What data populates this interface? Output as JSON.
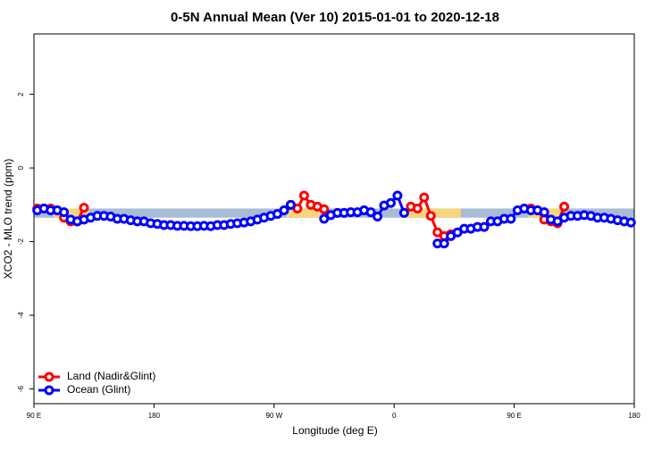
{
  "chart_data": {
    "type": "line",
    "title": "0-5N Annual Mean (Ver 10)   2015-01-01 to 2020-12-18",
    "x_label": "Longitude (deg E)",
    "y_label": "XCO2 - MLO trend (ppm)",
    "x": [
      92.5,
      97.5,
      102.5,
      107.5,
      112.5,
      117.5,
      122.5,
      127.5,
      132.5,
      137.5,
      142.5,
      147.5,
      152.5,
      157.5,
      162.5,
      167.5,
      172.5,
      177.5,
      182.5,
      187.5,
      192.5,
      197.5,
      202.5,
      207.5,
      212.5,
      217.5,
      222.5,
      227.5,
      232.5,
      237.5,
      242.5,
      247.5,
      252.5,
      257.5,
      262.5,
      267.5,
      272.5,
      277.5,
      282.5,
      287.5,
      292.5,
      297.5,
      302.5,
      307.5,
      312.5,
      317.5,
      322.5,
      327.5,
      332.5,
      337.5,
      342.5,
      347.5,
      352.5,
      357.5,
      362.5,
      367.5,
      372.5,
      377.5,
      382.5,
      387.5,
      392.5,
      397.5,
      402.5,
      407.5,
      412.5,
      417.5,
      422.5,
      427.5,
      432.5,
      437.5,
      442.5,
      447.5,
      452.5,
      457.5,
      462.5,
      467.5,
      472.5,
      477.5,
      482.5,
      487.5,
      492.5,
      497.5,
      502.5,
      507.5,
      512.5,
      517.5,
      522.5,
      527.5,
      532.5,
      537.5
    ],
    "series": [
      {
        "name": "Land (Nadir&Glint)",
        "color": "#ff0000",
        "values": [
          -1.1,
          -1.1,
          -1.1,
          -1.15,
          -1.35,
          -1.45,
          -1.45,
          -1.08,
          null,
          null,
          null,
          null,
          null,
          null,
          null,
          null,
          null,
          null,
          null,
          null,
          null,
          null,
          null,
          null,
          null,
          null,
          null,
          null,
          null,
          null,
          null,
          null,
          null,
          null,
          null,
          null,
          null,
          null,
          -1.0,
          -1.1,
          -0.75,
          -1.0,
          -1.05,
          -1.12,
          null,
          null,
          null,
          null,
          null,
          null,
          null,
          null,
          null,
          null,
          null,
          null,
          -1.05,
          -1.1,
          -0.8,
          -1.3,
          -1.75,
          -1.85,
          -1.8,
          null,
          null,
          null,
          null,
          null,
          null,
          null,
          null,
          null,
          null,
          null,
          -1.1,
          -1.15,
          -1.4,
          -1.45,
          -1.5,
          -1.05,
          null,
          null,
          null,
          null,
          null,
          null,
          null,
          null,
          null,
          null
        ]
      },
      {
        "name": "Ocean (Glint)",
        "color": "#0000ff",
        "values": [
          -1.15,
          -1.1,
          -1.15,
          -1.15,
          -1.2,
          -1.4,
          -1.45,
          -1.4,
          -1.35,
          -1.3,
          -1.3,
          -1.32,
          -1.38,
          -1.38,
          -1.42,
          -1.45,
          -1.45,
          -1.5,
          -1.52,
          -1.55,
          -1.55,
          -1.57,
          -1.57,
          -1.58,
          -1.58,
          -1.57,
          -1.58,
          -1.55,
          -1.55,
          -1.52,
          -1.5,
          -1.48,
          -1.45,
          -1.4,
          -1.35,
          -1.3,
          -1.25,
          -1.15,
          -1.0,
          null,
          null,
          null,
          null,
          -1.38,
          -1.28,
          -1.22,
          -1.22,
          -1.2,
          -1.2,
          -1.15,
          -1.2,
          -1.32,
          -1.02,
          -0.95,
          -0.75,
          -1.22,
          null,
          null,
          null,
          null,
          -2.05,
          -2.05,
          -1.85,
          -1.75,
          -1.65,
          -1.65,
          -1.6,
          -1.6,
          -1.45,
          -1.45,
          -1.38,
          -1.38,
          -1.15,
          -1.1,
          -1.15,
          -1.15,
          -1.2,
          -1.4,
          -1.45,
          -1.35,
          -1.3,
          -1.3,
          -1.28,
          -1.3,
          -1.35,
          -1.35,
          -1.38,
          -1.42,
          -1.45,
          -1.48
        ]
      }
    ],
    "xlim": [
      90,
      540
    ],
    "xticks": [
      {
        "value": 90,
        "label": "90 E"
      },
      180,
      {
        "value": 270,
        "label": "90 W"
      },
      {
        "value": 360,
        "label": "0"
      },
      {
        "value": 450,
        "label": "90 E"
      },
      {
        "value": 540,
        "label": "180"
      }
    ],
    "ylim": [
      -6.4,
      3.64
    ],
    "yticks": [
      -6,
      -4,
      -2,
      0,
      2
    ],
    "band": [
      -1.35,
      -1.1
    ],
    "band_color": "#a9bcd6",
    "land_ranges": [
      [
        105,
        131
      ],
      [
        279,
        305
      ],
      [
        366,
        410
      ],
      [
        460,
        487
      ]
    ],
    "land_color": "#f7d57e",
    "legend": "bottom-left"
  }
}
